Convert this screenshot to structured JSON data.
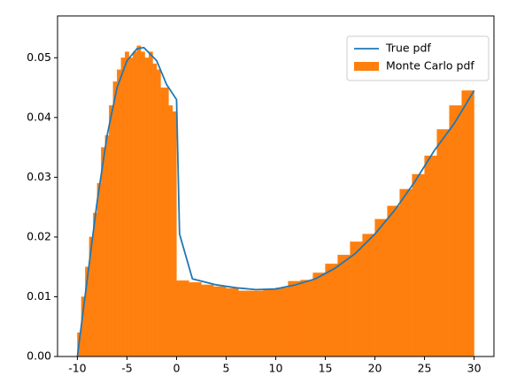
{
  "chart_data": {
    "type": "histogram",
    "xlim": [
      -12,
      32
    ],
    "ylim": [
      0,
      0.057
    ],
    "xticks": [
      -10,
      -5,
      0,
      5,
      10,
      15,
      20,
      25,
      30
    ],
    "yticks": [
      {
        "value": 0,
        "label": "0.00"
      },
      {
        "value": 0.01,
        "label": "0.01"
      },
      {
        "value": 0.02,
        "label": "0.02"
      },
      {
        "value": 0.03,
        "label": "0.03"
      },
      {
        "value": 0.04,
        "label": "0.04"
      },
      {
        "value": 0.05,
        "label": "0.05"
      }
    ],
    "legend": "upper right",
    "series": [
      {
        "name": "True pdf",
        "type": "line",
        "color": "#1f77b4",
        "x": [
          -10,
          -9,
          -8,
          -7,
          -6,
          -5,
          -4,
          -3.3,
          -2,
          -1,
          0,
          0.3,
          1.6,
          4,
          6,
          8,
          10,
          12,
          14,
          16,
          18,
          20,
          22,
          24,
          26,
          28,
          30
        ],
        "values": [
          0,
          0.013,
          0.026,
          0.037,
          0.045,
          0.0495,
          0.0515,
          0.0517,
          0.0495,
          0.0455,
          0.043,
          0.0205,
          0.013,
          0.012,
          0.0115,
          0.0112,
          0.0113,
          0.012,
          0.013,
          0.0148,
          0.0172,
          0.0205,
          0.0245,
          0.0292,
          0.0345,
          0.039,
          0.0445
        ]
      },
      {
        "name": "Monte Carlo pdf",
        "type": "histogram",
        "color": "#ff7f0e",
        "bins": [
          -10,
          -9.6,
          -9.2,
          -8.8,
          -8.4,
          -8,
          -7.6,
          -7.2,
          -6.8,
          -6.4,
          -6,
          -5.6,
          -5.2,
          -4.8,
          -4.4,
          -4,
          -3.6,
          -3.2,
          -2.8,
          -2.4,
          -2,
          -1.6,
          -1.2,
          -0.8,
          -0.4,
          0,
          1.25,
          2.5,
          3.75,
          5,
          6.25,
          7.5,
          8.75,
          10,
          11.25,
          12.5,
          13.75,
          15,
          16.25,
          17.5,
          18.75,
          20,
          21.25,
          22.5,
          23.75,
          25,
          26.25,
          27.5,
          28.75,
          30
        ],
        "values": [
          0.004,
          0.01,
          0.015,
          0.02,
          0.024,
          0.029,
          0.035,
          0.037,
          0.042,
          0.046,
          0.048,
          0.05,
          0.051,
          0.05,
          0.051,
          0.052,
          0.051,
          0.05,
          0.051,
          0.049,
          0.048,
          0.045,
          0.045,
          0.042,
          0.041,
          0.0127,
          0.0124,
          0.012,
          0.0117,
          0.0114,
          0.011,
          0.011,
          0.0113,
          0.0115,
          0.0126,
          0.0128,
          0.014,
          0.0155,
          0.017,
          0.0192,
          0.0205,
          0.023,
          0.0252,
          0.028,
          0.0305,
          0.0336,
          0.038,
          0.042,
          0.0445
        ]
      }
    ]
  }
}
